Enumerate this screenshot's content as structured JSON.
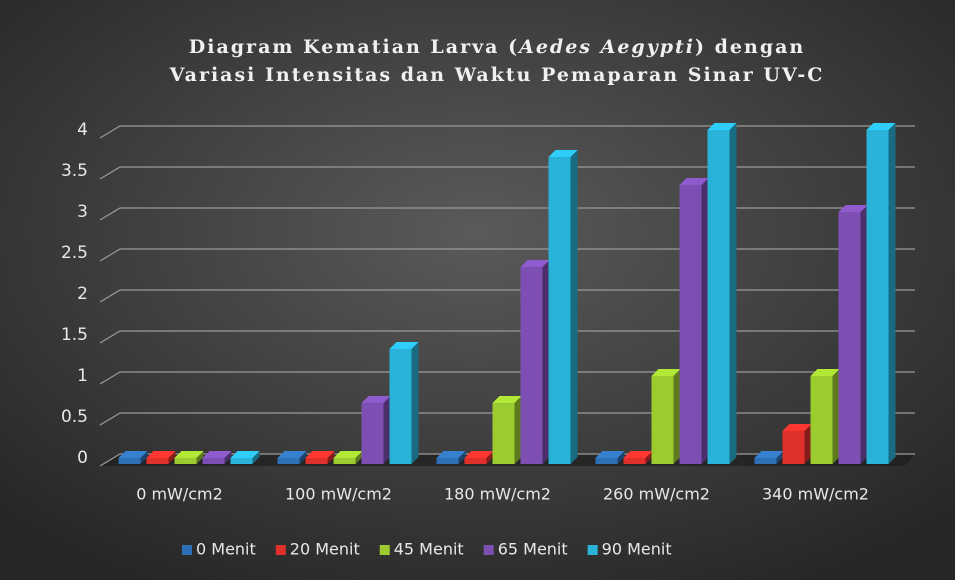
{
  "chart_data": {
    "type": "bar3d",
    "title": {
      "line1": [
        "Diagram Kematian Larva (",
        "Aedes Aegypti",
        ") dengan"
      ],
      "line2": "Variasi Intensitas dan Waktu Pemaparan Sinar UV-C"
    },
    "categories": [
      "0 mW/cm2",
      "100 mW/cm2",
      "180 mW/cm2",
      "260 mW/cm2",
      "340 mW/cm2"
    ],
    "series": [
      {
        "name": "0 Menit",
        "color": "#2f6fb5",
        "values": [
          0,
          0,
          0,
          0,
          0
        ]
      },
      {
        "name": "20 Menit",
        "color": "#e0302c",
        "values": [
          0,
          0,
          0,
          0,
          0.33
        ]
      },
      {
        "name": "45 Menit",
        "color": "#9bcb2f",
        "values": [
          0,
          0,
          0.67,
          1,
          1
        ]
      },
      {
        "name": "65 Menit",
        "color": "#7d4fb3",
        "values": [
          0,
          0.67,
          2.33,
          3.33,
          3
        ]
      },
      {
        "name": "90 Menit",
        "color": "#29b3d9",
        "values": [
          0,
          1.33,
          3.67,
          4,
          4
        ]
      }
    ],
    "ylim": [
      0,
      4
    ],
    "yticks": [
      0,
      0.5,
      1,
      1.5,
      2,
      2.5,
      3,
      3.5,
      4
    ],
    "grid": true,
    "legend": "bottom"
  }
}
